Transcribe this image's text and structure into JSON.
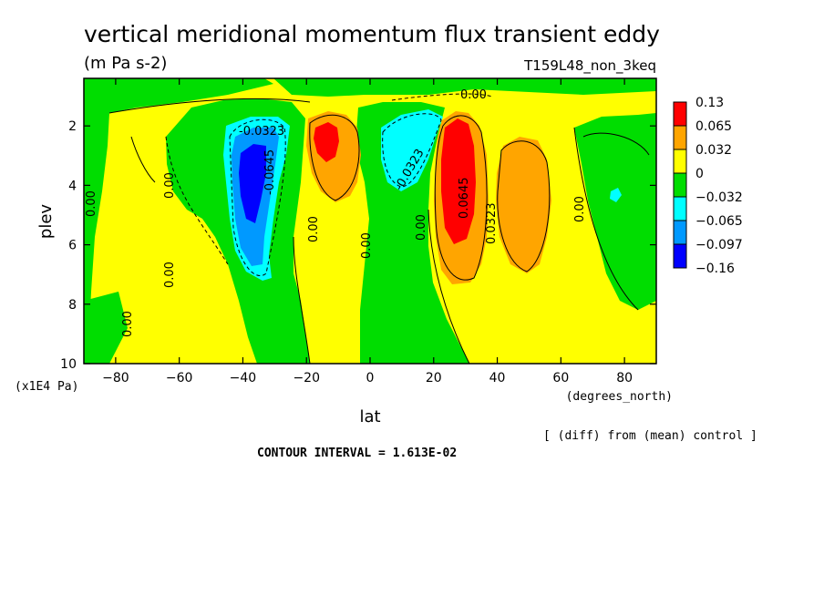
{
  "chart_data": {
    "type": "heatmap",
    "title": "vertical meridional momentum flux transient eddy",
    "units": "(m Pa s-2)",
    "run_label": "T159L48_non_3keq",
    "xlabel": "lat",
    "x_units": "(degrees_north)",
    "ylabel": "plev",
    "y_units": "(x1E4 Pa)",
    "xlim": [
      -90,
      90
    ],
    "ylim": [
      10,
      0.4
    ],
    "x_ticks": [
      -80,
      -60,
      -40,
      -20,
      0,
      20,
      40,
      60,
      80
    ],
    "y_ticks": [
      2,
      4,
      6,
      8,
      10
    ],
    "x_tick_labels": [
      "−80",
      "−60",
      "−40",
      "−20",
      "0",
      "20",
      "40",
      "60",
      "80"
    ],
    "y_tick_labels": [
      "2",
      "4",
      "6",
      "8",
      "10"
    ],
    "legend": {
      "placement": "right",
      "labels": [
        "0.13",
        "0.065",
        "0.032",
        "0",
        "−0.032",
        "−0.065",
        "−0.097",
        "−0.16"
      ],
      "colors": [
        "#ff0000",
        "#ffa500",
        "#ffff00",
        "#00dd00",
        "#00ffff",
        "#0099ff",
        "#0000ff"
      ]
    },
    "footer_note": "[ (diff) from (mean) control ]",
    "contour_interval": "CONTOUR INTERVAL = 1.613E-02",
    "contour_labels": [
      "0.00",
      "-0.0323",
      "-0.0645",
      "0.0645",
      "0.0323",
      "-0.0323",
      "0.00"
    ],
    "features": [
      {
        "name": "southern negative core",
        "lat": -37,
        "plev": 4.0,
        "value": -0.16
      },
      {
        "name": "southern subtropical positive core",
        "lat": -16,
        "plev": 2.5,
        "value": 0.13
      },
      {
        "name": "equatorial negative region",
        "lat": 8,
        "plev": 2.5,
        "value": -0.065
      },
      {
        "name": "northern positive core",
        "lat": 27,
        "plev": 3.5,
        "value": 0.13
      },
      {
        "name": "northern midlatitude positive",
        "lat": 45,
        "plev": 4.5,
        "value": 0.065
      }
    ]
  }
}
